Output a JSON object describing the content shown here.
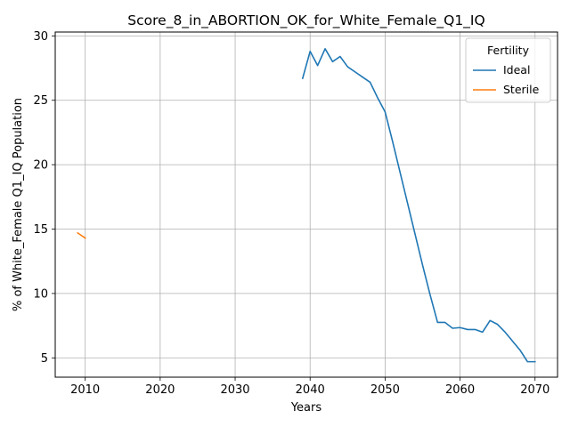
{
  "chart_data": {
    "type": "line",
    "title": "Score_8_in_ABORTION_OK_for_White_Female_Q1_IQ",
    "xlabel": "Years",
    "ylabel": "% of White_Female Q1_IQ Population",
    "xlim": [
      2006,
      2073
    ],
    "ylim": [
      3.5,
      30.3
    ],
    "xticks": [
      2010,
      2020,
      2030,
      2040,
      2050,
      2060,
      2070
    ],
    "yticks": [
      5,
      10,
      15,
      20,
      25,
      30
    ],
    "grid": true,
    "legend": {
      "title": "Fertility",
      "placement": "top-right",
      "entries": [
        "Ideal",
        "Sterile"
      ]
    },
    "series": [
      {
        "name": "Ideal",
        "color": "#1f77b4",
        "x": [
          2039,
          2040,
          2041,
          2042,
          2043,
          2044,
          2045,
          2046,
          2047,
          2048,
          2049,
          2050,
          2051,
          2052,
          2053,
          2054,
          2055,
          2056,
          2057,
          2058,
          2059,
          2060,
          2061,
          2062,
          2063,
          2064,
          2065,
          2066,
          2067,
          2068,
          2069,
          2070
        ],
        "y": [
          26.7,
          28.8,
          27.7,
          29.0,
          28.0,
          28.4,
          27.6,
          27.2,
          26.8,
          26.4,
          25.2,
          24.1,
          21.8,
          19.4,
          17.0,
          14.6,
          12.2,
          9.9,
          7.75,
          7.75,
          7.3,
          7.35,
          7.2,
          7.2,
          7.0,
          7.9,
          7.6,
          7.0,
          6.3,
          5.6,
          4.7,
          4.7
        ]
      },
      {
        "name": "Sterile",
        "color": "#ff7f0e",
        "x": [
          2009,
          2010
        ],
        "y": [
          14.7,
          14.3
        ]
      }
    ]
  }
}
